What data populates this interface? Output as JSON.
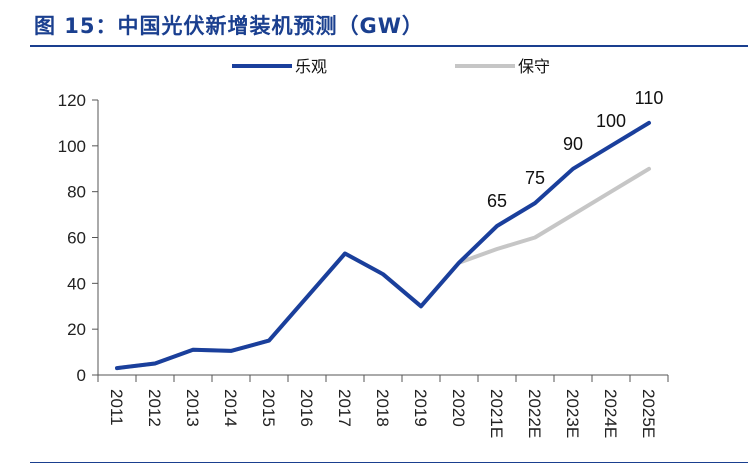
{
  "figure": {
    "title": "图 15：中国光伏新增装机预测（GW）"
  },
  "chart_data": {
    "type": "line",
    "title": "图 15：中国光伏新增装机预测（GW）",
    "xlabel": "",
    "ylabel": "",
    "ylim": [
      0,
      120
    ],
    "yticks": [
      0,
      20,
      40,
      60,
      80,
      100,
      120
    ],
    "grid": false,
    "legend": "top-right",
    "categories": [
      "2011",
      "2012",
      "2013",
      "2014",
      "2015",
      "2016",
      "2017",
      "2018",
      "2019",
      "2020",
      "2021E",
      "2022E",
      "2023E",
      "2024E",
      "2025E"
    ],
    "series": [
      {
        "name": "乐观",
        "color": "#1a3f9c",
        "values": [
          3,
          5,
          11,
          10.5,
          15,
          34,
          53,
          44,
          30,
          49,
          65,
          75,
          90,
          100,
          110
        ],
        "labeled_from": 10
      },
      {
        "name": "保守",
        "color": "#c6c6c6",
        "values": [
          3,
          5,
          11,
          10.5,
          15,
          34,
          53,
          44,
          30,
          49,
          55,
          60,
          70,
          80,
          90
        ]
      }
    ]
  }
}
